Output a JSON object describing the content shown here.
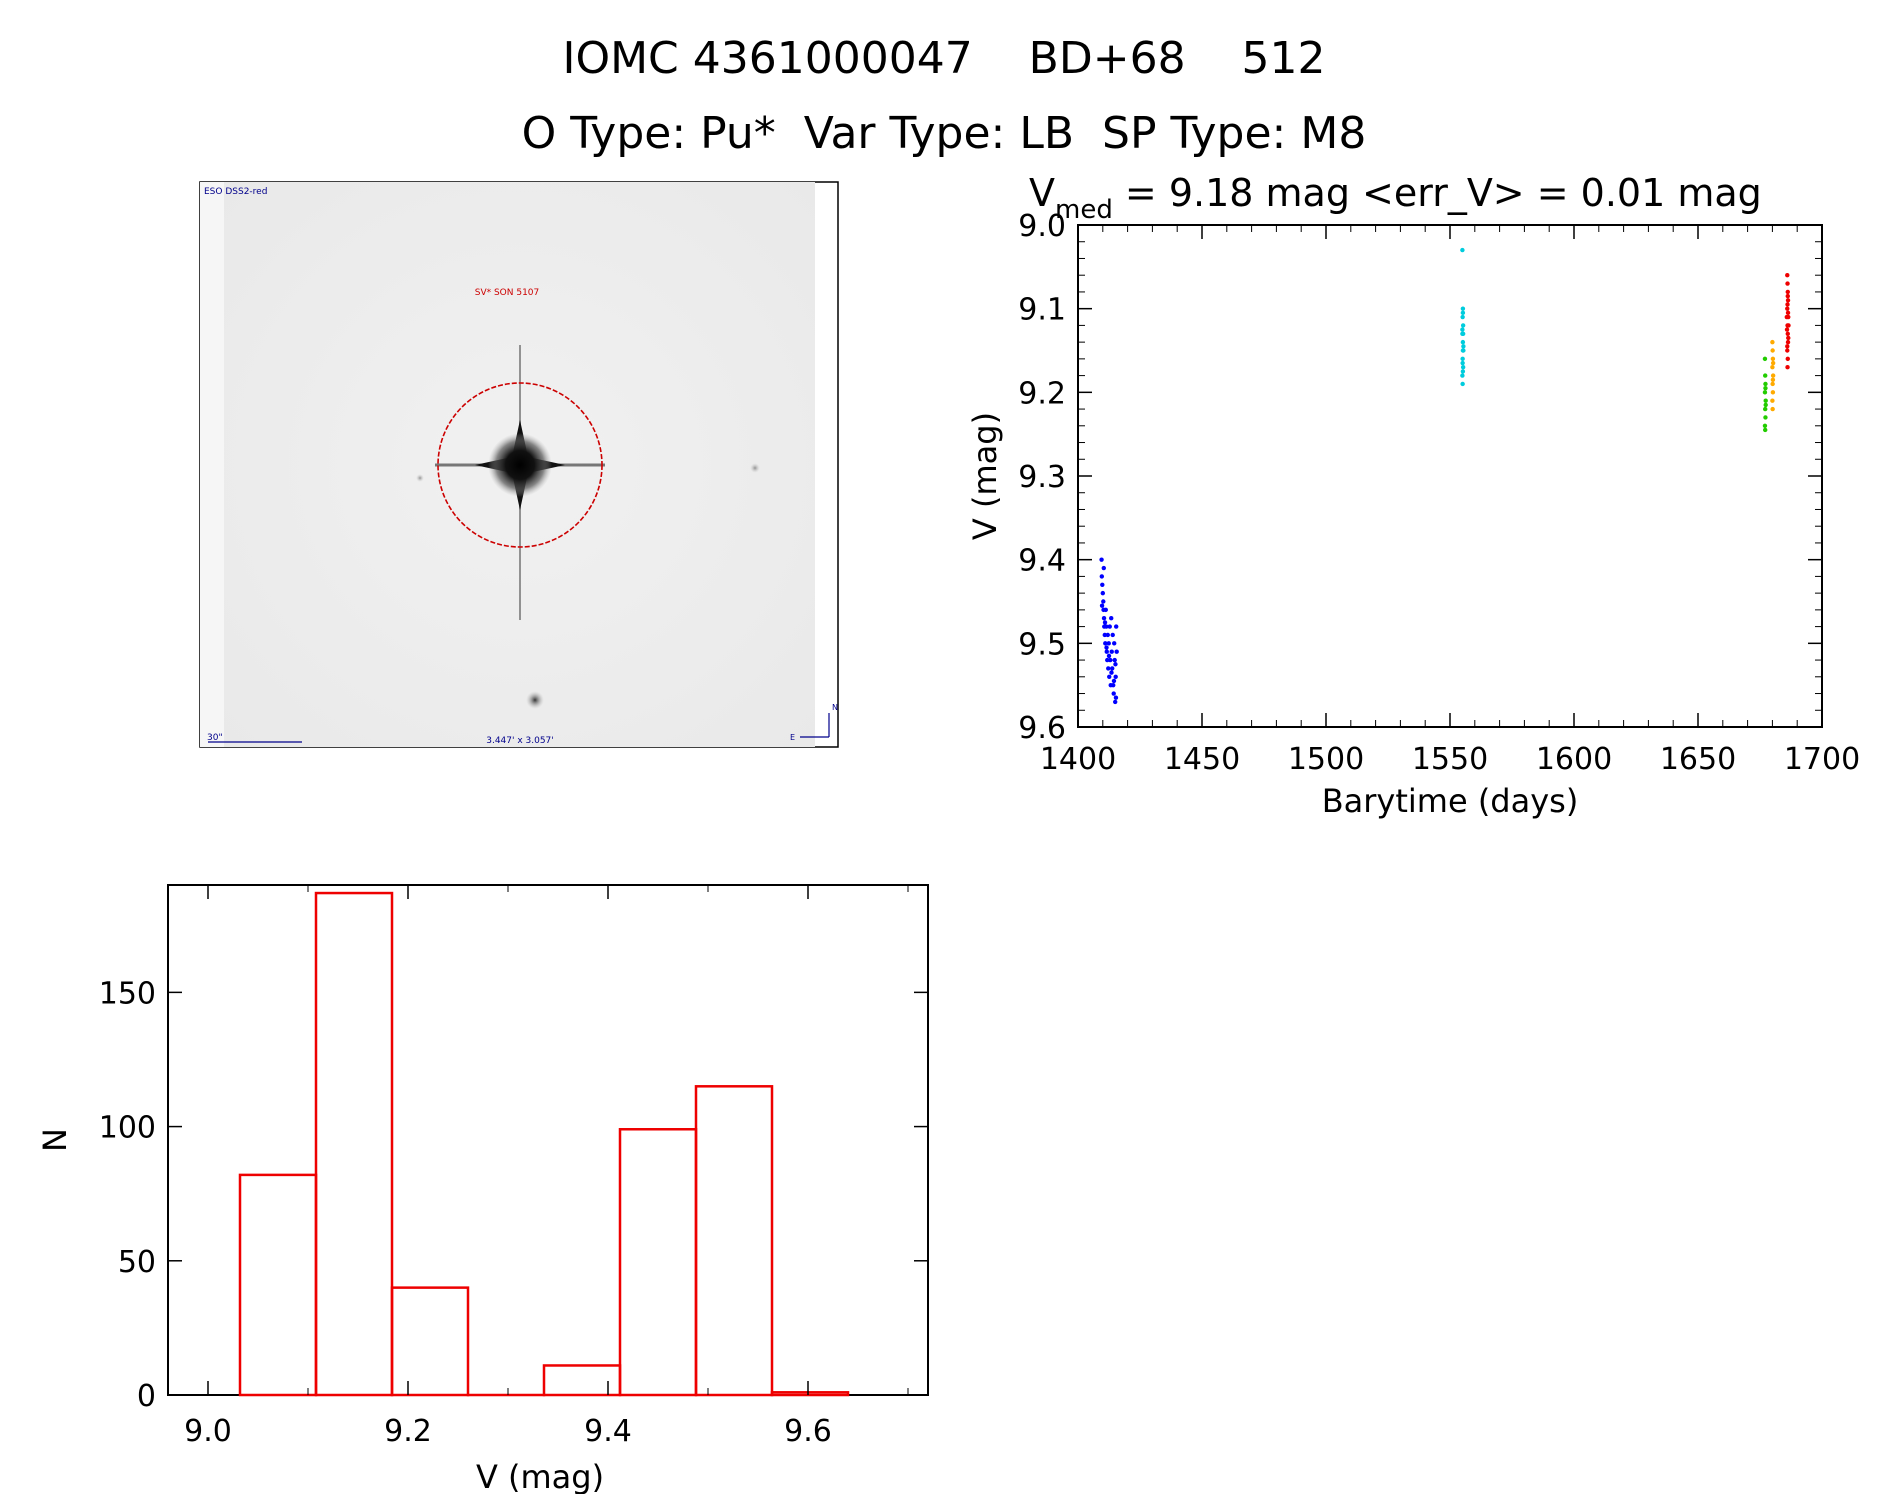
{
  "header": {
    "title_line1": "IOMC 4361000047    BD+68    512",
    "title_line2": "O Type: Pu*  Var Type: LB  SP Type: M8"
  },
  "image_panel": {
    "survey_label": "ESO DSS2-red",
    "object_label": "SV* SON 5107",
    "scale_label": "30\"",
    "size_label": "3.447' x 3.057'",
    "north_label": "N",
    "east_label": "E",
    "circle_color": "#cc0000",
    "label_color": "#00008b"
  },
  "chart_data": [
    {
      "type": "scatter",
      "title_prefix": "V",
      "title_subscript": "med",
      "title_rest": " = 9.18 mag <err_V> = 0.01 mag",
      "xlabel": "Barytime (days)",
      "ylabel": "V (mag)",
      "xlim": [
        1400,
        1700
      ],
      "ylim": [
        9.0,
        9.6
      ],
      "y_inverted": true,
      "x_ticks": [
        1400,
        1450,
        1500,
        1550,
        1600,
        1650,
        1700
      ],
      "y_ticks": [
        "9.0",
        "9.1",
        "9.2",
        "9.3",
        "9.4",
        "9.5",
        "9.6"
      ],
      "series": [
        {
          "color": "#0000ff",
          "points": [
            [
              1409.5,
              9.4
            ],
            [
              1409.6,
              9.42
            ],
            [
              1409.8,
              9.43
            ],
            [
              1410.0,
              9.44
            ],
            [
              1410.2,
              9.45
            ],
            [
              1410.3,
              9.46
            ],
            [
              1410.5,
              9.47
            ],
            [
              1410.6,
              9.48
            ],
            [
              1410.8,
              9.49
            ],
            [
              1411.0,
              9.5
            ],
            [
              1411.2,
              9.46
            ],
            [
              1411.4,
              9.48
            ],
            [
              1411.6,
              9.51
            ],
            [
              1411.8,
              9.52
            ],
            [
              1412.0,
              9.49
            ],
            [
              1412.2,
              9.53
            ],
            [
              1412.4,
              9.5
            ],
            [
              1412.6,
              9.54
            ],
            [
              1412.8,
              9.48
            ],
            [
              1413.0,
              9.52
            ],
            [
              1413.2,
              9.55
            ],
            [
              1413.4,
              9.47
            ],
            [
              1413.6,
              9.51
            ],
            [
              1413.8,
              9.53
            ],
            [
              1414.0,
              9.49
            ],
            [
              1414.2,
              9.55
            ],
            [
              1414.4,
              9.56
            ],
            [
              1414.6,
              9.5
            ],
            [
              1414.8,
              9.52
            ],
            [
              1415.0,
              9.57
            ],
            [
              1415.2,
              9.54
            ],
            [
              1415.4,
              9.48
            ],
            [
              1415.6,
              9.51
            ],
            [
              1409.7,
              9.455
            ],
            [
              1410.9,
              9.475
            ],
            [
              1411.5,
              9.505
            ],
            [
              1412.5,
              9.515
            ],
            [
              1413.5,
              9.535
            ],
            [
              1414.5,
              9.545
            ],
            [
              1415.1,
              9.525
            ],
            [
              1410.4,
              9.41
            ],
            [
              1415.3,
              9.565
            ]
          ]
        },
        {
          "color": "#00ccdd",
          "points": [
            [
              1555.0,
              9.03
            ],
            [
              1555.2,
              9.1
            ],
            [
              1555.1,
              9.11
            ],
            [
              1555.3,
              9.12
            ],
            [
              1555.0,
              9.13
            ],
            [
              1555.2,
              9.14
            ],
            [
              1555.4,
              9.15
            ],
            [
              1555.1,
              9.16
            ],
            [
              1555.3,
              9.17
            ],
            [
              1555.0,
              9.18
            ],
            [
              1555.2,
              9.15
            ],
            [
              1555.1,
              9.19
            ],
            [
              1555.3,
              9.13
            ],
            [
              1555.2,
              9.105
            ],
            [
              1555.0,
              9.125
            ],
            [
              1555.4,
              9.145
            ],
            [
              1555.1,
              9.165
            ],
            [
              1555.2,
              9.175
            ]
          ]
        },
        {
          "color": "#22cc00",
          "points": [
            [
              1677.0,
              9.16
            ],
            [
              1677.1,
              9.18
            ],
            [
              1677.2,
              9.19
            ],
            [
              1677.0,
              9.2
            ],
            [
              1677.3,
              9.21
            ],
            [
              1677.1,
              9.22
            ],
            [
              1677.2,
              9.23
            ],
            [
              1677.0,
              9.24
            ],
            [
              1677.1,
              9.245
            ],
            [
              1677.2,
              9.195
            ],
            [
              1677.3,
              9.215
            ]
          ]
        },
        {
          "color": "#ffaa00",
          "points": [
            [
              1680.0,
              9.14
            ],
            [
              1680.1,
              9.15
            ],
            [
              1680.2,
              9.16
            ],
            [
              1680.0,
              9.17
            ],
            [
              1680.3,
              9.18
            ],
            [
              1680.1,
              9.19
            ],
            [
              1680.2,
              9.2
            ],
            [
              1680.0,
              9.21
            ],
            [
              1680.1,
              9.22
            ],
            [
              1680.3,
              9.165
            ],
            [
              1680.2,
              9.185
            ]
          ]
        },
        {
          "color": "#ee0000",
          "points": [
            [
              1686.0,
              9.06
            ],
            [
              1686.1,
              9.07
            ],
            [
              1686.2,
              9.08
            ],
            [
              1686.3,
              9.09
            ],
            [
              1686.0,
              9.1
            ],
            [
              1686.4,
              9.11
            ],
            [
              1686.1,
              9.12
            ],
            [
              1686.2,
              9.13
            ],
            [
              1686.3,
              9.14
            ],
            [
              1686.0,
              9.15
            ],
            [
              1686.2,
              9.16
            ],
            [
              1686.1,
              9.17
            ],
            [
              1685.8,
              9.11
            ],
            [
              1686.5,
              9.12
            ],
            [
              1686.3,
              9.105
            ],
            [
              1686.1,
              9.095
            ],
            [
              1686.4,
              9.135
            ],
            [
              1685.9,
              9.125
            ],
            [
              1686.2,
              9.085
            ],
            [
              1686.0,
              9.145
            ]
          ]
        }
      ]
    },
    {
      "type": "bar",
      "subtype": "histogram",
      "xlabel": "V (mag)",
      "ylabel": "N",
      "xlim": [
        8.96,
        9.72
      ],
      "ylim": [
        0,
        190
      ],
      "x_ticks": [
        "9.0",
        "9.2",
        "9.4",
        "9.6"
      ],
      "y_ticks": [
        0,
        50,
        100,
        150
      ],
      "bar_color": "#ee0000",
      "bins": [
        {
          "x0": 9.032,
          "x1": 9.108,
          "count": 82
        },
        {
          "x0": 9.108,
          "x1": 9.184,
          "count": 187
        },
        {
          "x0": 9.184,
          "x1": 9.26,
          "count": 40
        },
        {
          "x0": 9.26,
          "x1": 9.336,
          "count": 0
        },
        {
          "x0": 9.336,
          "x1": 9.412,
          "count": 11
        },
        {
          "x0": 9.412,
          "x1": 9.488,
          "count": 99
        },
        {
          "x0": 9.488,
          "x1": 9.564,
          "count": 115
        },
        {
          "x0": 9.564,
          "x1": 9.64,
          "count": 1
        }
      ]
    }
  ]
}
